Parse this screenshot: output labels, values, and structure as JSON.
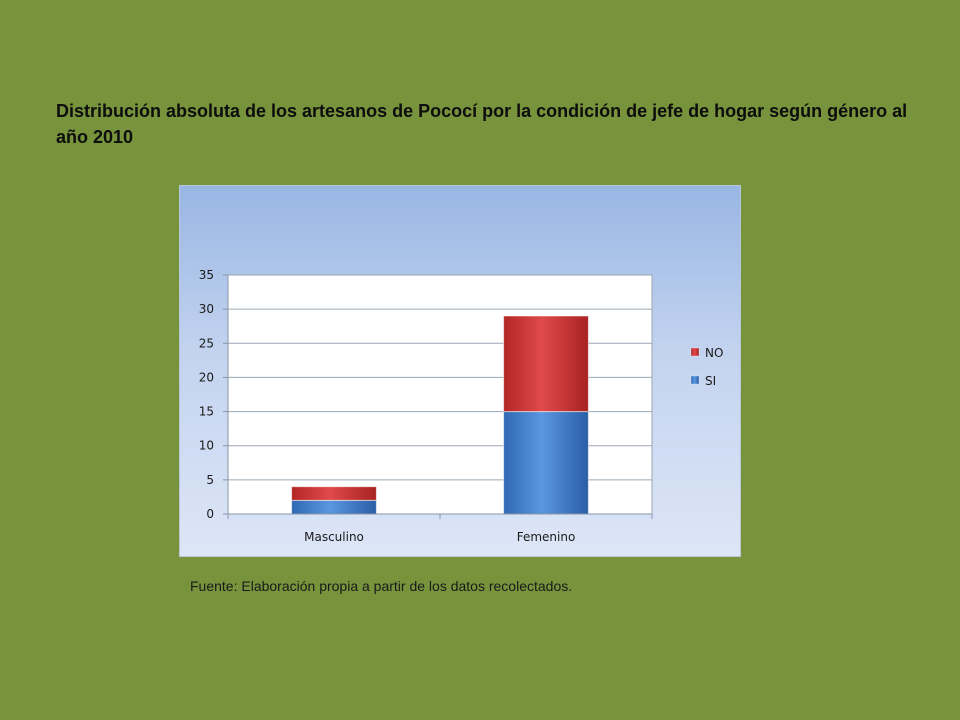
{
  "slide": {
    "title": "Distribución absoluta  de los artesanos de Pococí por la condición de jefe de hogar según  género al año 2010",
    "source": "Fuente: Elaboración propia a partir de los datos recolectados."
  },
  "colors": {
    "background": "#77933c",
    "si": "#4a86d4",
    "no": "#d23b3b"
  },
  "chart_data": {
    "type": "bar",
    "stacked": true,
    "categories": [
      "Masculino",
      "Femenino"
    ],
    "series": [
      {
        "name": "SI",
        "values": [
          2,
          15
        ],
        "color": "#4a86d4"
      },
      {
        "name": "NO",
        "values": [
          2,
          14
        ],
        "color": "#d23b3b"
      }
    ],
    "ylim": [
      0,
      35
    ],
    "yticks": [
      0,
      5,
      10,
      15,
      20,
      25,
      30,
      35
    ],
    "grid": true,
    "legend": "right",
    "legend_order": [
      "NO",
      "SI"
    ]
  }
}
